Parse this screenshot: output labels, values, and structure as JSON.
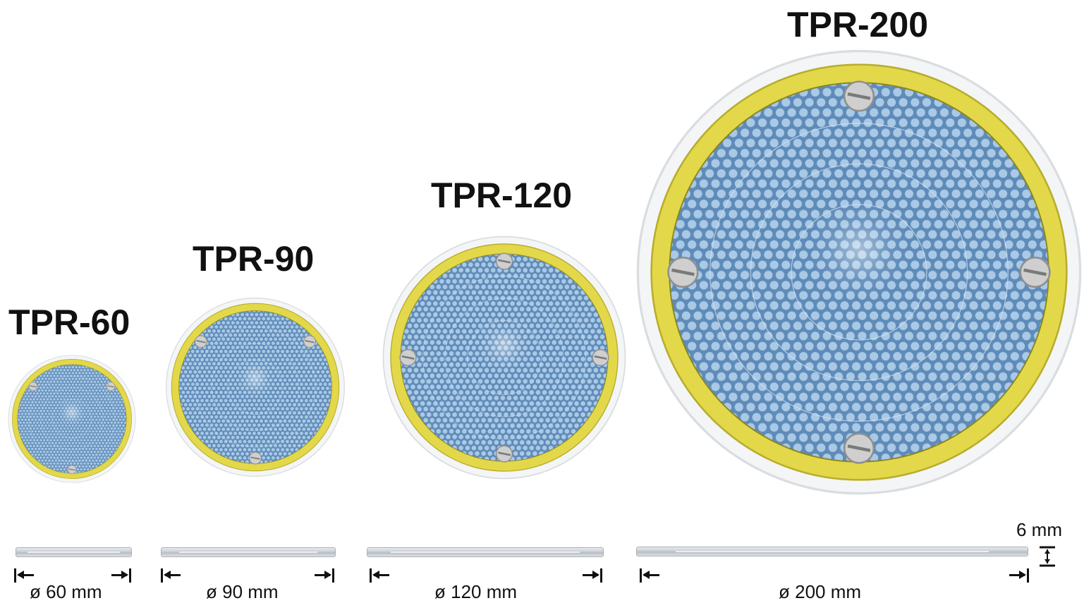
{
  "products": [
    {
      "id": "tpr60",
      "title": "TPR-60",
      "diameter_label": "ø 60 mm",
      "screws": 3
    },
    {
      "id": "tpr90",
      "title": "TPR-90",
      "diameter_label": "ø 90 mm",
      "screws": 3
    },
    {
      "id": "tpr120",
      "title": "TPR-120",
      "diameter_label": "ø 120 mm",
      "screws": 4
    },
    {
      "id": "tpr200",
      "title": "TPR-200",
      "diameter_label": "ø 200 mm",
      "screws": 4
    }
  ],
  "thickness_label": "6 mm",
  "colors": {
    "rim_yellow": "#e3d84a",
    "reflector_blue": "#6f9ac3",
    "honeycomb_light": "#a9c9e6",
    "screw_gray": "#c9c9c9",
    "outer_clear": "#eef1f3"
  }
}
